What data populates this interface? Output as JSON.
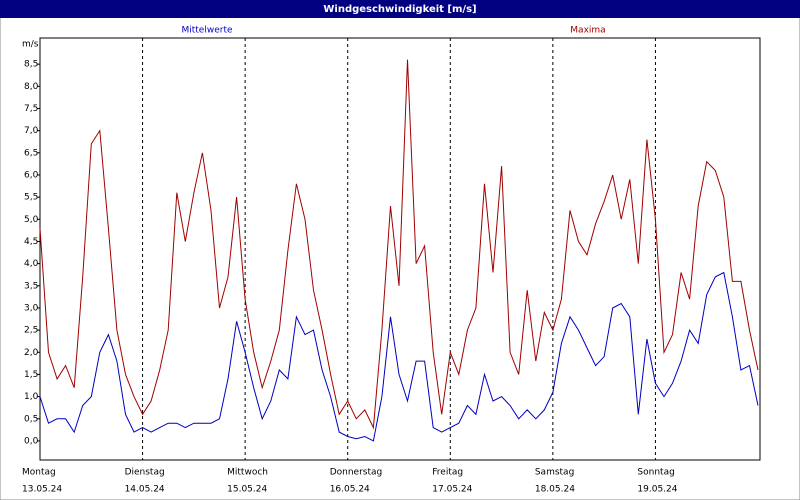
{
  "chart_data": {
    "type": "line",
    "title": "Windgeschwindigkeit [m/s]",
    "y_axis_label": "m/s",
    "x": [
      0,
      2,
      4,
      6,
      8,
      10,
      12,
      14,
      16,
      18,
      20,
      22,
      24,
      26,
      28,
      30,
      32,
      34,
      36,
      38,
      40,
      42,
      44,
      46,
      48,
      50,
      52,
      54,
      56,
      58,
      60,
      62,
      64,
      66,
      68,
      70,
      72,
      74,
      76,
      78,
      80,
      82,
      84,
      86,
      88,
      90,
      92,
      94,
      96,
      98,
      100,
      102,
      104,
      106,
      108,
      110,
      112,
      114,
      116,
      118,
      120,
      122,
      124,
      126,
      128,
      130,
      132,
      134,
      136,
      138,
      140,
      142,
      144,
      146,
      148,
      150,
      152,
      154,
      156,
      158,
      160,
      162,
      164,
      166,
      168
    ],
    "xlim": [
      0,
      168
    ],
    "xticks": [
      {
        "value": 0,
        "label": "Montag"
      },
      {
        "value": 24,
        "label": "Dienstag"
      },
      {
        "value": 48,
        "label": "Mittwoch"
      },
      {
        "value": 72,
        "label": "Donnerstag"
      },
      {
        "value": 96,
        "label": "Freitag"
      },
      {
        "value": 120,
        "label": "Samstag"
      },
      {
        "value": 144,
        "label": "Sonntag"
      }
    ],
    "xtick_dates": [
      "13.05.24",
      "14.05.24",
      "15.05.24",
      "16.05.24",
      "17.05.24",
      "18.05.24",
      "19.05.24"
    ],
    "ylim": [
      -0.43,
      9.09
    ],
    "yticks": [
      {
        "value": 0,
        "label": "0,0"
      },
      {
        "value": 0.5,
        "label": "0,5"
      },
      {
        "value": 1,
        "label": "1,0"
      },
      {
        "value": 1.5,
        "label": "1,5"
      },
      {
        "value": 2,
        "label": "2,0"
      },
      {
        "value": 2.5,
        "label": "2,5"
      },
      {
        "value": 3,
        "label": "3,0"
      },
      {
        "value": 3.5,
        "label": "3,5"
      },
      {
        "value": 4,
        "label": "4,0"
      },
      {
        "value": 4.5,
        "label": "4,5"
      },
      {
        "value": 5,
        "label": "5,0"
      },
      {
        "value": 5.5,
        "label": "5,5"
      },
      {
        "value": 6,
        "label": "6,0"
      },
      {
        "value": 6.5,
        "label": "6,5"
      },
      {
        "value": 7,
        "label": "7,0"
      },
      {
        "value": 7.5,
        "label": "7,5"
      },
      {
        "value": 8,
        "label": "8,0"
      },
      {
        "value": 8.5,
        "label": "8,5"
      }
    ],
    "grid": "x",
    "series": [
      {
        "name": "Mittelwerte",
        "color": "#0000c0",
        "values": [
          1.0,
          0.4,
          0.5,
          0.5,
          0.2,
          0.8,
          1.0,
          2.0,
          2.4,
          1.8,
          0.6,
          0.2,
          0.3,
          0.2,
          0.3,
          0.4,
          0.4,
          0.3,
          0.4,
          0.4,
          0.4,
          0.5,
          1.4,
          2.7,
          2.0,
          1.2,
          0.5,
          0.9,
          1.6,
          1.4,
          2.8,
          2.4,
          2.5,
          1.6,
          1.0,
          0.2,
          0.1,
          0.05,
          0.1,
          0.0,
          1.0,
          2.8,
          1.5,
          0.9,
          1.8,
          1.8,
          0.3,
          0.2,
          0.3,
          0.4,
          0.8,
          0.6,
          1.5,
          0.9,
          1.0,
          0.8,
          0.5,
          0.7,
          0.5,
          0.7,
          1.1,
          2.2,
          2.8,
          2.5,
          2.1,
          1.7,
          1.9,
          3.0,
          3.1,
          2.8,
          0.6,
          2.3,
          1.3,
          1.0,
          1.3,
          1.8,
          2.5,
          2.2,
          3.3,
          3.7,
          3.8,
          2.8,
          1.6,
          1.7,
          0.8
        ]
      },
      {
        "name": "Maxima",
        "color": "#a00000",
        "values": [
          4.8,
          2.0,
          1.4,
          1.7,
          1.2,
          3.7,
          6.7,
          7.0,
          4.8,
          2.5,
          1.5,
          1.0,
          0.6,
          0.9,
          1.6,
          2.5,
          5.6,
          4.5,
          5.6,
          6.5,
          5.2,
          3.0,
          3.7,
          5.5,
          3.2,
          2.0,
          1.2,
          1.8,
          2.5,
          4.3,
          5.8,
          5.0,
          3.4,
          2.5,
          1.5,
          0.6,
          0.9,
          0.5,
          0.7,
          0.3,
          2.5,
          5.3,
          3.5,
          8.6,
          4.0,
          4.4,
          2.0,
          0.6,
          2.0,
          1.5,
          2.5,
          3.0,
          5.8,
          3.8,
          6.2,
          2.0,
          1.5,
          3.4,
          1.8,
          2.9,
          2.5,
          3.2,
          5.2,
          4.5,
          4.2,
          4.9,
          5.4,
          6.0,
          5.0,
          5.9,
          4.0,
          6.8,
          5.0,
          2.0,
          2.4,
          3.8,
          3.2,
          5.3,
          6.3,
          6.1,
          5.5,
          3.6,
          3.6,
          2.5,
          1.6
        ]
      }
    ]
  }
}
